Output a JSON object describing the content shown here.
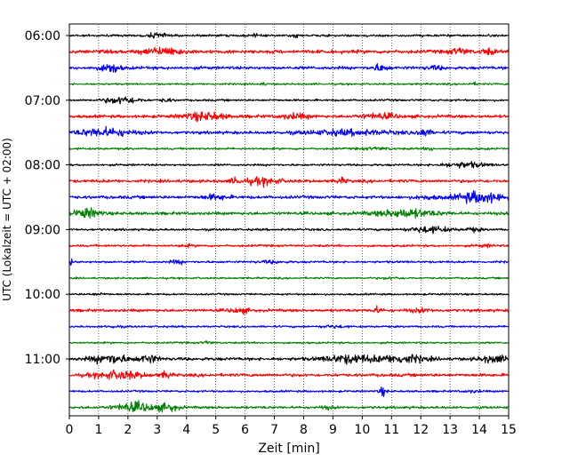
{
  "chart_data": {
    "type": "line",
    "title": "",
    "xlabel": "Zeit  [min]",
    "ylabel": "UTC (Lokalzeit = UTC + 02:00)",
    "xlim": [
      0,
      15
    ],
    "x_ticks": [
      "0",
      "1",
      "2",
      "3",
      "4",
      "5",
      "6",
      "7",
      "8",
      "9",
      "10",
      "11",
      "12",
      "13",
      "14",
      "15"
    ],
    "y_ticks": [
      "06:00",
      "07:00",
      "08:00",
      "09:00",
      "10:00",
      "11:00"
    ],
    "trace_interval_min": 15,
    "grid": "vertical dotted",
    "colors": [
      "#000000",
      "#ff0000",
      "#0000ff",
      "#008000"
    ],
    "traces": [
      {
        "start": "06:00",
        "amp": 0.22,
        "events": [
          [
            3.0,
            0.6,
            3
          ],
          [
            6.3,
            0.3,
            2
          ],
          [
            7.7,
            0.15,
            3
          ]
        ]
      },
      {
        "start": "06:15",
        "amp": 0.35,
        "events": [
          [
            3.2,
            1.3,
            3
          ],
          [
            13.3,
            0.6,
            2.5
          ],
          [
            14.3,
            0.4,
            2.5
          ]
        ]
      },
      {
        "start": "06:30",
        "amp": 0.3,
        "events": [
          [
            1.4,
            0.6,
            4
          ],
          [
            10.6,
            0.5,
            3
          ],
          [
            12.5,
            0.6,
            2
          ]
        ]
      },
      {
        "start": "06:45",
        "amp": 0.18,
        "events": [
          [
            6.6,
            0.3,
            2
          ],
          [
            13.8,
            0.3,
            2
          ]
        ]
      },
      {
        "start": "07:00",
        "amp": 0.2,
        "events": [
          [
            1.8,
            1.1,
            4.5
          ],
          [
            3.3,
            0.3,
            3
          ]
        ]
      },
      {
        "start": "07:15",
        "amp": 0.3,
        "events": [
          [
            4.6,
            1.4,
            3.5
          ],
          [
            7.7,
            1.0,
            2.5
          ],
          [
            10.6,
            1.3,
            2.5
          ]
        ]
      },
      {
        "start": "07:30",
        "amp": 0.3,
        "events": [
          [
            1.2,
            1.8,
            3.5
          ],
          [
            9.5,
            3.0,
            2.5
          ],
          [
            12.1,
            0.4,
            3.5
          ]
        ]
      },
      {
        "start": "07:45",
        "amp": 0.2,
        "events": [
          [
            10.5,
            1.0,
            2
          ],
          [
            12.3,
            0.3,
            2.5
          ]
        ]
      },
      {
        "start": "08:00",
        "amp": 0.2,
        "events": [
          [
            13.5,
            1.5,
            3.5
          ]
        ]
      },
      {
        "start": "08:15",
        "amp": 0.3,
        "events": [
          [
            5.7,
            0.3,
            3
          ],
          [
            6.6,
            1.2,
            3
          ],
          [
            9.3,
            0.3,
            2.5
          ]
        ]
      },
      {
        "start": "08:30",
        "amp": 0.3,
        "events": [
          [
            5.0,
            0.8,
            2.5
          ],
          [
            14.0,
            1.5,
            4.5
          ],
          [
            12.2,
            0.8,
            2
          ]
        ]
      },
      {
        "start": "08:45",
        "amp": 0.3,
        "events": [
          [
            0.6,
            0.8,
            4
          ],
          [
            11.5,
            2.0,
            3.5
          ]
        ]
      },
      {
        "start": "09:00",
        "amp": 0.22,
        "events": [
          [
            12.3,
            1.4,
            3.5
          ],
          [
            13.8,
            0.5,
            2.5
          ]
        ]
      },
      {
        "start": "09:15",
        "amp": 0.22,
        "events": [
          [
            4.0,
            0.4,
            2
          ],
          [
            14.2,
            0.6,
            2
          ]
        ]
      },
      {
        "start": "09:30",
        "amp": 0.22,
        "events": [
          [
            3.7,
            0.4,
            2.5
          ],
          [
            6.9,
            0.8,
            2
          ],
          [
            0.0,
            0.2,
            4
          ]
        ]
      },
      {
        "start": "09:45",
        "amp": 0.18,
        "events": [
          [
            11.0,
            0.6,
            2
          ]
        ]
      },
      {
        "start": "10:00",
        "amp": 0.18,
        "events": [
          [
            1.0,
            0.5,
            2
          ]
        ]
      },
      {
        "start": "10:15",
        "amp": 0.28,
        "events": [
          [
            5.8,
            0.7,
            2.5
          ],
          [
            10.5,
            0.3,
            3
          ],
          [
            12.0,
            0.8,
            2
          ]
        ]
      },
      {
        "start": "10:30",
        "amp": 0.2,
        "events": [
          [
            1.5,
            0.5,
            2
          ],
          [
            9.0,
            0.8,
            2
          ]
        ]
      },
      {
        "start": "10:45",
        "amp": 0.18,
        "events": [
          [
            4.7,
            0.3,
            2.5
          ]
        ]
      },
      {
        "start": "11:00",
        "amp": 0.3,
        "events": [
          [
            1.4,
            1.2,
            4
          ],
          [
            2.7,
            0.6,
            3.5
          ],
          [
            9.6,
            1.8,
            3.5
          ],
          [
            11.4,
            1.5,
            3.5
          ],
          [
            14.5,
            1.0,
            3
          ]
        ]
      },
      {
        "start": "11:15",
        "amp": 0.3,
        "events": [
          [
            1.7,
            1.6,
            3.5
          ],
          [
            3.3,
            0.3,
            3
          ]
        ]
      },
      {
        "start": "11:30",
        "amp": 0.2,
        "events": [
          [
            10.7,
            0.2,
            5
          ],
          [
            13.8,
            0.6,
            2
          ]
        ]
      },
      {
        "start": "11:45",
        "amp": 0.25,
        "events": [
          [
            2.3,
            1.4,
            4.5
          ],
          [
            3.4,
            0.6,
            3.5
          ],
          [
            8.8,
            0.4,
            2
          ]
        ]
      }
    ]
  }
}
